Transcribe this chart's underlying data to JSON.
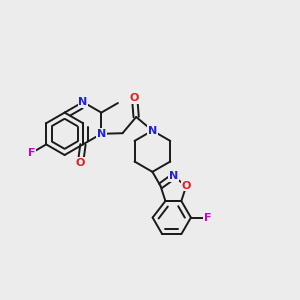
{
  "bg_color": "#ececec",
  "bond_color": "#1a1a1a",
  "bond_lw": 1.4,
  "atom_colors": {
    "N": "#2020dd",
    "O": "#dd2020",
    "F": "#cc00cc",
    "C": "#1a1a1a"
  },
  "dbl_off": 0.09
}
